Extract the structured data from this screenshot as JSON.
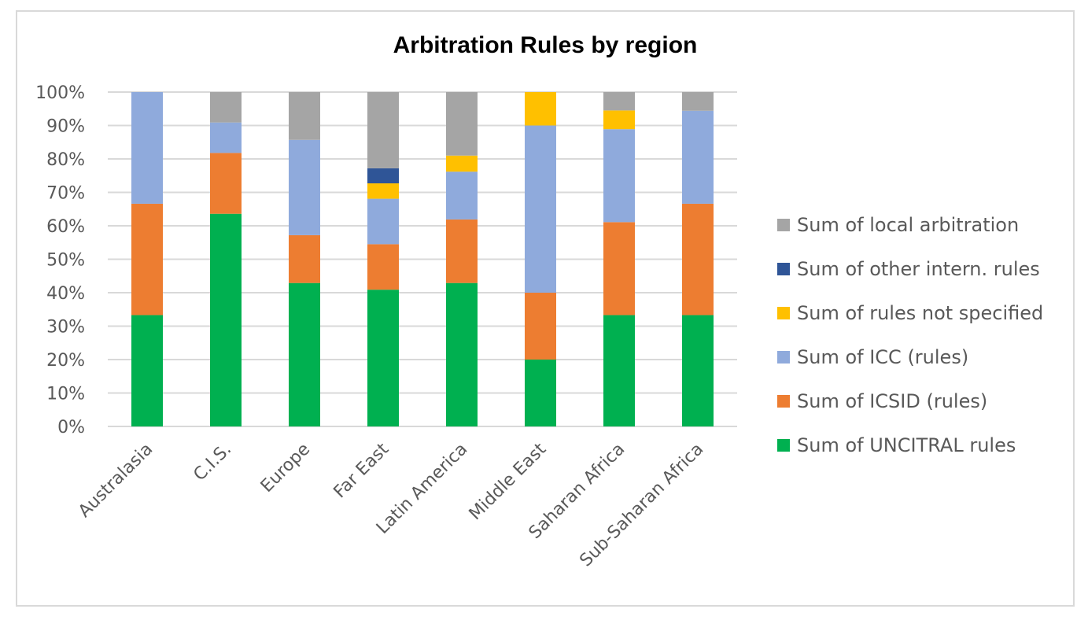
{
  "chart_data": {
    "type": "bar",
    "stacked": true,
    "percent_stacked": true,
    "title": "Arbitration Rules by region",
    "xlabel": "",
    "ylabel": "",
    "ylim": [
      0,
      100
    ],
    "y_ticks": [
      "0%",
      "10%",
      "20%",
      "30%",
      "40%",
      "50%",
      "60%",
      "70%",
      "80%",
      "90%",
      "100%"
    ],
    "grid": true,
    "legend_position": "right",
    "categories": [
      "Australasia",
      "C.I.S.",
      "Europe",
      "Far East",
      "Latin America",
      "Middle East",
      "Saharan Africa",
      "Sub-Saharan Africa"
    ],
    "series": [
      {
        "name": "Sum of UNCITRAL rules",
        "color": "#00b050",
        "values": [
          33.3,
          63.6,
          42.9,
          40.9,
          42.9,
          20.0,
          33.3,
          33.3
        ]
      },
      {
        "name": "Sum of ICSID (rules)",
        "color": "#ed7d31",
        "values": [
          33.3,
          18.2,
          14.3,
          13.6,
          19.0,
          20.0,
          27.8,
          33.3
        ]
      },
      {
        "name": "Sum of ICC (rules)",
        "color": "#8faadc",
        "values": [
          33.4,
          9.1,
          28.5,
          13.6,
          14.3,
          50.0,
          27.8,
          27.8
        ]
      },
      {
        "name": "Sum of rules not specified",
        "color": "#ffc000",
        "values": [
          0,
          0,
          0,
          4.6,
          4.8,
          10.0,
          5.6,
          0
        ]
      },
      {
        "name": "Sum of other intern. rules",
        "color": "#2f5597",
        "values": [
          0,
          0,
          0,
          4.5,
          0,
          0,
          0,
          0
        ]
      },
      {
        "name": "Sum of local arbitration",
        "color": "#a5a5a5",
        "values": [
          0,
          9.1,
          14.3,
          22.8,
          19.0,
          0,
          5.5,
          5.6
        ]
      }
    ],
    "legend_order": [
      "Sum of local arbitration",
      "Sum of other intern. rules",
      "Sum of rules not specified",
      "Sum of ICC (rules)",
      "Sum of ICSID (rules)",
      "Sum of UNCITRAL rules"
    ]
  }
}
